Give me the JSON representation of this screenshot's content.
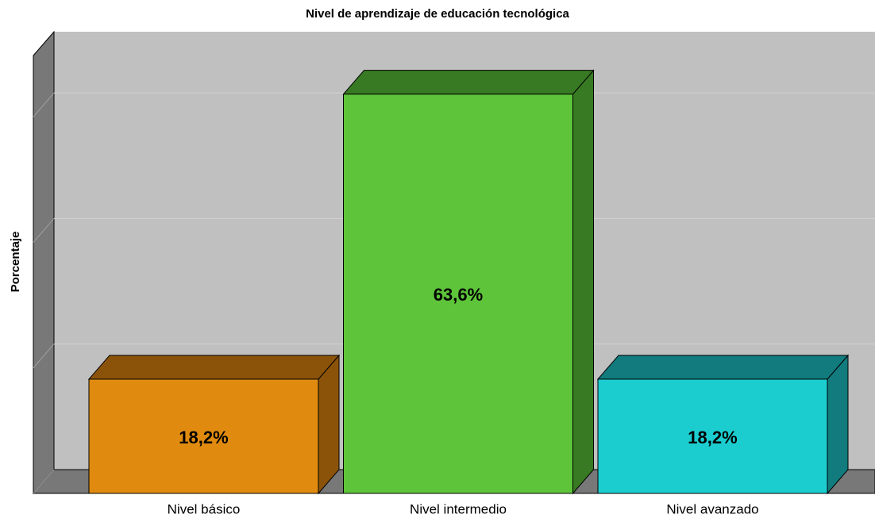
{
  "chart_data": {
    "type": "bar3d",
    "title": "Nivel de aprendizaje de educación tecnológica",
    "ylabel": "Porcentaje",
    "categories": [
      "Nivel básico",
      "Nivel intermedio",
      "Nivel avanzado"
    ],
    "values": [
      18.2,
      63.6,
      18.2
    ],
    "value_labels": [
      "18,2%",
      "63,6%",
      "18,2%"
    ],
    "colors": [
      "#e08b10",
      "#5ec43a",
      "#1ccdd0"
    ],
    "side_colors": [
      "#8b5309",
      "#387a23",
      "#117b7d"
    ],
    "ylim": [
      0,
      70
    ],
    "yticks": [
      0,
      20,
      40,
      60
    ],
    "grid": true
  }
}
